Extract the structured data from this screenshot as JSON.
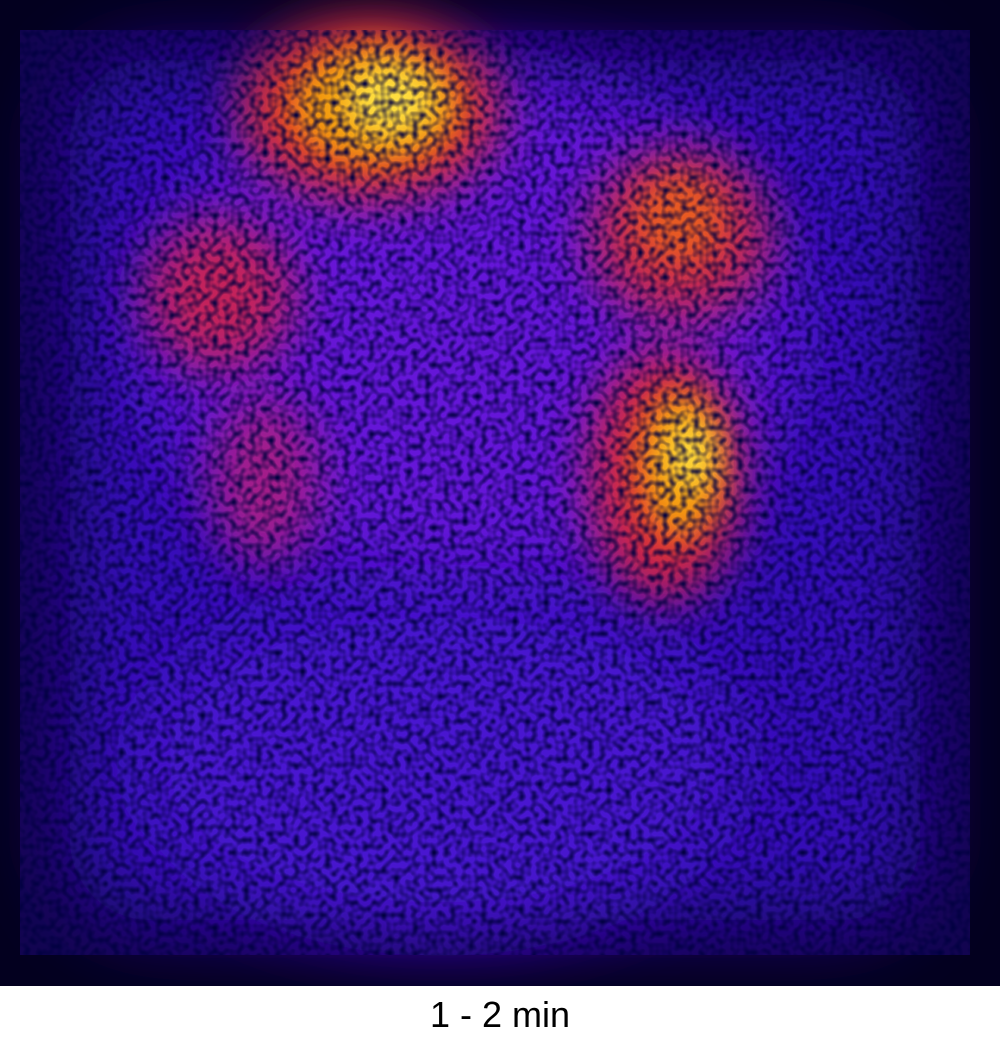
{
  "caption": "1 - 2 min"
}
